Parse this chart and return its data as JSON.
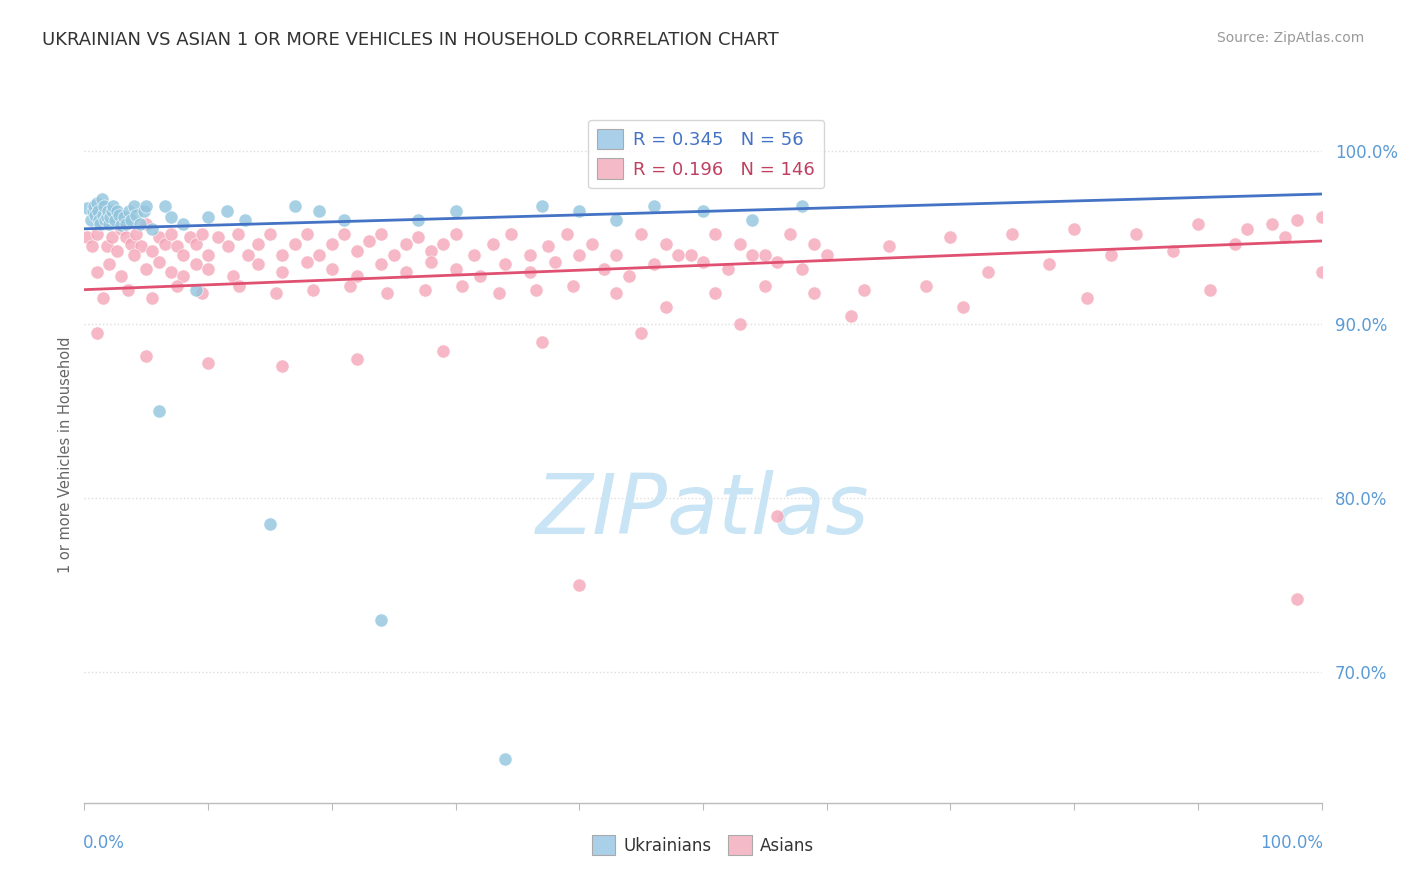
{
  "title": "UKRAINIAN VS ASIAN 1 OR MORE VEHICLES IN HOUSEHOLD CORRELATION CHART",
  "source": "Source: ZipAtlas.com",
  "ylabel": "1 or more Vehicles in Household",
  "xlim": [
    0.0,
    1.0
  ],
  "ylim": [
    0.625,
    1.025
  ],
  "ytick_vals": [
    0.7,
    0.8,
    0.9,
    1.0
  ],
  "ytick_labels": [
    "70.0%",
    "80.0%",
    "90.0%",
    "100.0%"
  ],
  "ukrainians": {
    "color": "#92c5de",
    "x": [
      0.002,
      0.005,
      0.007,
      0.008,
      0.009,
      0.01,
      0.011,
      0.012,
      0.013,
      0.014,
      0.015,
      0.016,
      0.017,
      0.018,
      0.019,
      0.02,
      0.021,
      0.022,
      0.023,
      0.025,
      0.026,
      0.028,
      0.03,
      0.032,
      0.034,
      0.036,
      0.038,
      0.04,
      0.042,
      0.045,
      0.048,
      0.05,
      0.055,
      0.06,
      0.065,
      0.07,
      0.08,
      0.09,
      0.1,
      0.115,
      0.13,
      0.15,
      0.17,
      0.19,
      0.21,
      0.24,
      0.27,
      0.3,
      0.34,
      0.37,
      0.4,
      0.43,
      0.46,
      0.5,
      0.54,
      0.58
    ],
    "y": [
      0.967,
      0.96,
      0.965,
      0.968,
      0.963,
      0.97,
      0.965,
      0.96,
      0.958,
      0.972,
      0.963,
      0.968,
      0.96,
      0.962,
      0.965,
      0.958,
      0.962,
      0.965,
      0.968,
      0.96,
      0.965,
      0.963,
      0.957,
      0.962,
      0.958,
      0.965,
      0.96,
      0.968,
      0.963,
      0.958,
      0.965,
      0.968,
      0.955,
      0.85,
      0.968,
      0.962,
      0.958,
      0.92,
      0.962,
      0.965,
      0.96,
      0.785,
      0.968,
      0.965,
      0.96,
      0.73,
      0.96,
      0.965,
      0.65,
      0.968,
      0.965,
      0.96,
      0.968,
      0.965,
      0.96,
      0.968
    ],
    "trend_x": [
      0.0,
      1.0
    ],
    "trend_y": [
      0.955,
      0.975
    ]
  },
  "asians": {
    "color": "#f4a6b8",
    "x": [
      0.002,
      0.006,
      0.01,
      0.014,
      0.018,
      0.022,
      0.026,
      0.03,
      0.034,
      0.038,
      0.042,
      0.046,
      0.05,
      0.055,
      0.06,
      0.065,
      0.07,
      0.075,
      0.08,
      0.085,
      0.09,
      0.095,
      0.1,
      0.108,
      0.116,
      0.124,
      0.132,
      0.14,
      0.15,
      0.16,
      0.17,
      0.18,
      0.19,
      0.2,
      0.21,
      0.22,
      0.23,
      0.24,
      0.25,
      0.26,
      0.27,
      0.28,
      0.29,
      0.3,
      0.315,
      0.33,
      0.345,
      0.36,
      0.375,
      0.39,
      0.41,
      0.43,
      0.45,
      0.47,
      0.49,
      0.51,
      0.53,
      0.55,
      0.57,
      0.59,
      0.01,
      0.02,
      0.03,
      0.04,
      0.05,
      0.06,
      0.07,
      0.08,
      0.09,
      0.1,
      0.12,
      0.14,
      0.16,
      0.18,
      0.2,
      0.22,
      0.24,
      0.26,
      0.28,
      0.3,
      0.32,
      0.34,
      0.36,
      0.38,
      0.4,
      0.42,
      0.44,
      0.46,
      0.48,
      0.5,
      0.52,
      0.54,
      0.56,
      0.58,
      0.6,
      0.65,
      0.7,
      0.75,
      0.8,
      0.85,
      0.9,
      0.94,
      0.96,
      0.98,
      1.0,
      0.015,
      0.035,
      0.055,
      0.075,
      0.095,
      0.125,
      0.155,
      0.185,
      0.215,
      0.245,
      0.275,
      0.305,
      0.335,
      0.365,
      0.395,
      0.43,
      0.47,
      0.51,
      0.55,
      0.59,
      0.63,
      0.68,
      0.73,
      0.78,
      0.83,
      0.88,
      0.93,
      0.97,
      0.01,
      0.05,
      0.1,
      0.16,
      0.22,
      0.29,
      0.37,
      0.45,
      0.53,
      0.62,
      0.71,
      0.81,
      0.91,
      1.0,
      0.4,
      0.98,
      0.56
    ],
    "y": [
      0.95,
      0.945,
      0.952,
      0.958,
      0.945,
      0.95,
      0.942,
      0.955,
      0.95,
      0.946,
      0.952,
      0.945,
      0.958,
      0.942,
      0.95,
      0.946,
      0.952,
      0.945,
      0.94,
      0.95,
      0.946,
      0.952,
      0.94,
      0.95,
      0.945,
      0.952,
      0.94,
      0.946,
      0.952,
      0.94,
      0.946,
      0.952,
      0.94,
      0.946,
      0.952,
      0.942,
      0.948,
      0.952,
      0.94,
      0.946,
      0.95,
      0.942,
      0.946,
      0.952,
      0.94,
      0.946,
      0.952,
      0.94,
      0.945,
      0.952,
      0.946,
      0.94,
      0.952,
      0.946,
      0.94,
      0.952,
      0.946,
      0.94,
      0.952,
      0.946,
      0.93,
      0.935,
      0.928,
      0.94,
      0.932,
      0.936,
      0.93,
      0.928,
      0.935,
      0.932,
      0.928,
      0.935,
      0.93,
      0.936,
      0.932,
      0.928,
      0.935,
      0.93,
      0.936,
      0.932,
      0.928,
      0.935,
      0.93,
      0.936,
      0.94,
      0.932,
      0.928,
      0.935,
      0.94,
      0.936,
      0.932,
      0.94,
      0.936,
      0.932,
      0.94,
      0.945,
      0.95,
      0.952,
      0.955,
      0.952,
      0.958,
      0.955,
      0.958,
      0.96,
      0.962,
      0.915,
      0.92,
      0.915,
      0.922,
      0.918,
      0.922,
      0.918,
      0.92,
      0.922,
      0.918,
      0.92,
      0.922,
      0.918,
      0.92,
      0.922,
      0.918,
      0.91,
      0.918,
      0.922,
      0.918,
      0.92,
      0.922,
      0.93,
      0.935,
      0.94,
      0.942,
      0.946,
      0.95,
      0.895,
      0.882,
      0.878,
      0.876,
      0.88,
      0.885,
      0.89,
      0.895,
      0.9,
      0.905,
      0.91,
      0.915,
      0.92,
      0.93,
      0.75,
      0.742,
      0.79
    ],
    "trend_x": [
      0.0,
      1.0
    ],
    "trend_y": [
      0.92,
      0.948
    ]
  },
  "uk_trend_color": "#4472c4",
  "asian_trend_color": "#e05070",
  "background_color": "#ffffff",
  "grid_color": "#dddddd",
  "watermark_text": "ZIPatlas",
  "watermark_color": "#c8e4f5",
  "title_fontsize": 13,
  "axis_tick_color": "#5b9bd5",
  "ylabel_color": "#666666",
  "legend_uk_color": "#aacfe8",
  "legend_asian_color": "#f5bac8",
  "legend_uk_text_color": "#4472c4",
  "legend_asian_text_color": "#c04060",
  "bottom_legend_label_color": "#333333"
}
